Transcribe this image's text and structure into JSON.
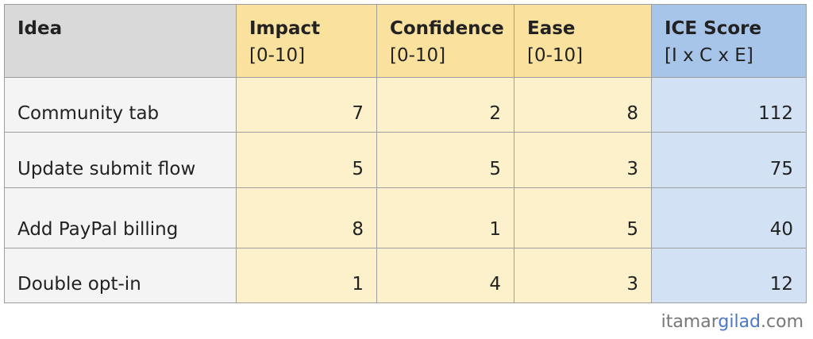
{
  "table": {
    "header": [
      {
        "title": "Idea"
      },
      {
        "title": "Impact",
        "subtitle": "[0-10]"
      },
      {
        "title": "Confidence",
        "subtitle": "[0-10]"
      },
      {
        "title": "Ease",
        "subtitle": "[0-10]"
      },
      {
        "title": "ICE Score",
        "subtitle": "[I x C x E]"
      }
    ],
    "rows": [
      [
        "Community tab",
        7,
        2,
        8,
        112
      ],
      [
        "Update submit flow",
        5,
        5,
        3,
        75
      ],
      [
        "Add PayPal billing",
        8,
        1,
        5,
        40
      ],
      [
        "Double opt-in",
        1,
        4,
        3,
        12
      ]
    ]
  },
  "footer": {
    "parts": [
      "itamar",
      "gilad",
      ".com"
    ]
  }
}
